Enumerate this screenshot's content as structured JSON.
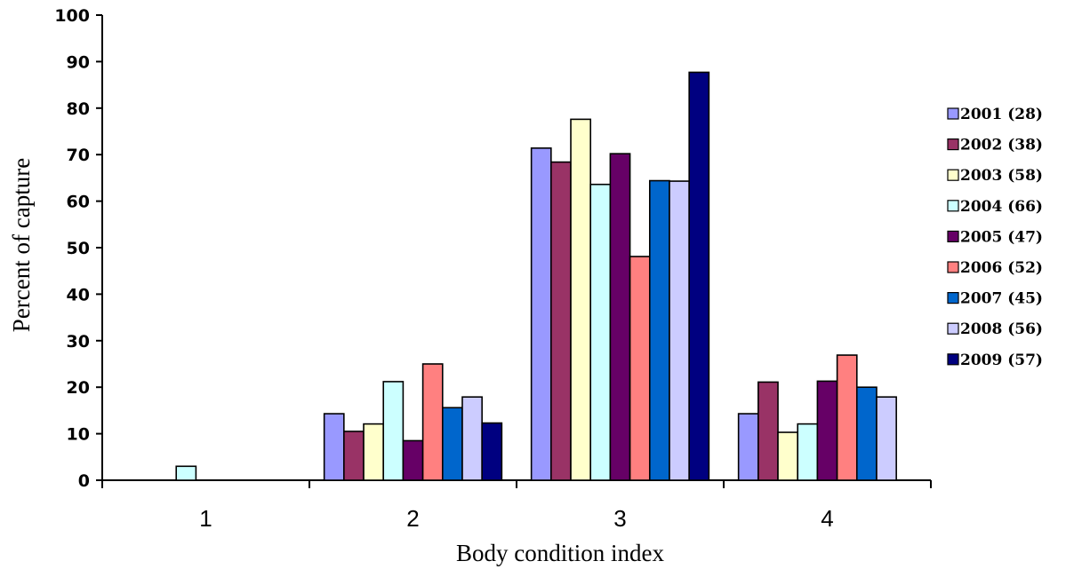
{
  "chart_data": {
    "type": "bar",
    "xlabel": "Body condition index",
    "ylabel": "Percent of capture",
    "ylim": [
      0,
      100
    ],
    "yticks": [
      "0",
      "10",
      "20",
      "30",
      "40",
      "50",
      "60",
      "70",
      "80",
      "90",
      "100"
    ],
    "categories": [
      "1",
      "2",
      "3",
      "4"
    ],
    "legend_position": "right",
    "series": [
      {
        "name": "2001 (28)",
        "color": "#9999ff",
        "values": [
          0,
          14.3,
          71.4,
          14.3
        ]
      },
      {
        "name": "2002 (38)",
        "color": "#993366",
        "values": [
          0,
          10.5,
          68.4,
          21.1
        ]
      },
      {
        "name": "2003 (58)",
        "color": "#ffffcc",
        "values": [
          0,
          12.1,
          77.6,
          10.3
        ]
      },
      {
        "name": "2004 (66)",
        "color": "#ccffff",
        "values": [
          3.0,
          21.2,
          63.6,
          12.1
        ]
      },
      {
        "name": "2005 (47)",
        "color": "#660066",
        "values": [
          0,
          8.5,
          70.2,
          21.3
        ]
      },
      {
        "name": "2006 (52)",
        "color": "#ff8080",
        "values": [
          0,
          25.0,
          48.1,
          26.9
        ]
      },
      {
        "name": "2007 (45)",
        "color": "#0066cc",
        "values": [
          0,
          15.6,
          64.4,
          20.0
        ]
      },
      {
        "name": "2008 (56)",
        "color": "#ccccff",
        "values": [
          0,
          17.9,
          64.3,
          17.9
        ]
      },
      {
        "name": "2009 (57)",
        "color": "#000080",
        "values": [
          0,
          12.3,
          87.7,
          0
        ]
      }
    ]
  }
}
